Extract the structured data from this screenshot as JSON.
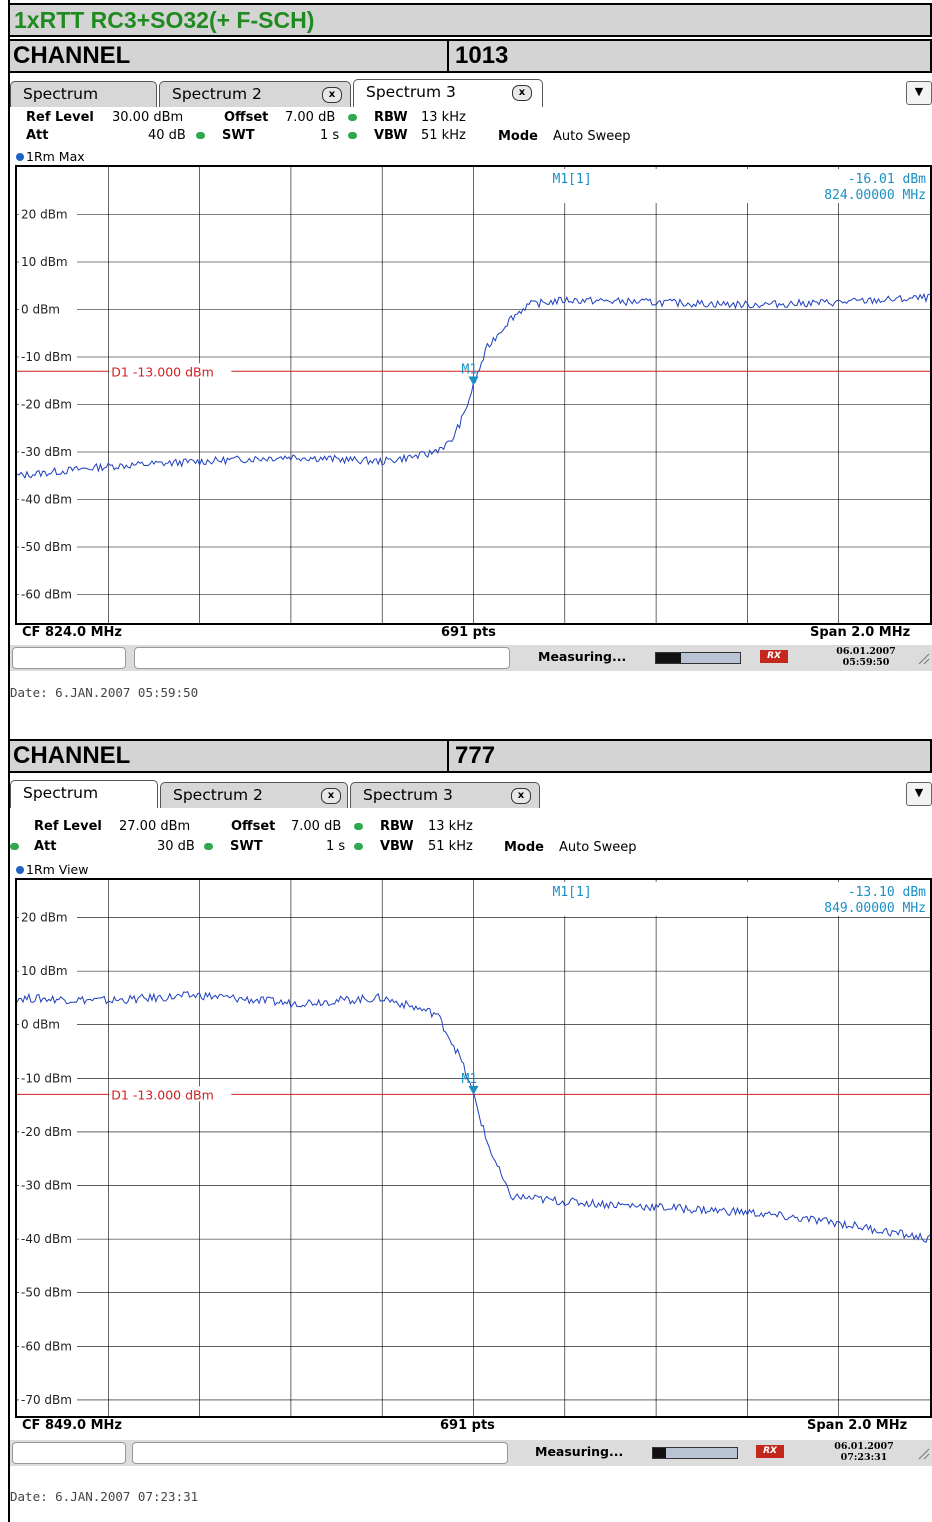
{
  "title": "1xRTT RC3+SO32(+ F-SCH)",
  "colors": {
    "title_text": "#1f8a1f",
    "trace": "#1e3fc0",
    "marker": "#1a8fc4",
    "display_line": "#d02020"
  },
  "panels": [
    {
      "channel_label": "CHANNEL",
      "channel_value": "1013",
      "tabs": [
        {
          "label": "Spectrum",
          "active": false,
          "close_icon": "x-icon"
        },
        {
          "label": "Spectrum 2",
          "active": false,
          "close_icon": "x-icon"
        },
        {
          "label": "Spectrum 3",
          "active": true,
          "close_icon": "x-icon"
        }
      ],
      "params": {
        "ref_level_label": "Ref Level",
        "ref_level_value": "30.00 dBm",
        "offset_label": "Offset",
        "offset_value": "7.00 dB",
        "rbw_label": "RBW",
        "rbw_value": "13 kHz",
        "att_label": "Att",
        "att_value": "40 dB",
        "swt_label": "SWT",
        "swt_value": "1 s",
        "vbw_label": "VBW",
        "vbw_value": "51 kHz",
        "mode_label": "Mode",
        "mode_value": "Auto Sweep"
      },
      "trace_label": "1Rm Max",
      "marker": {
        "name": "M1[1]",
        "level": "-16.01 dBm",
        "freq": "824.00000 MHz",
        "tag": "M1"
      },
      "display_line": "D1 -13.000 dBm",
      "y_axis_labels": [
        "20 dBm",
        "10 dBm",
        "0 dBm",
        "-10 dBm",
        "-20 dBm",
        "-30 dBm",
        "-40 dBm",
        "-50 dBm",
        "-60 dBm"
      ],
      "footer": {
        "cf": "CF 824.0 MHz",
        "pts": "691 pts",
        "span": "Span 2.0 MHz"
      },
      "status": {
        "measuring": "Measuring...",
        "progress": 0.3,
        "date": "06.01.2007",
        "time": "05:59:50"
      },
      "date_line": "Date: 6.JAN.2007  05:59:50",
      "chart_data": {
        "type": "line",
        "y_unit": "dBm",
        "ylim": [
          -66,
          30
        ],
        "xlim": [
          823.0,
          825.0
        ],
        "display_line_dbm": -13.0,
        "marker": {
          "x": 824.0,
          "y": -16.01
        },
        "series": [
          {
            "x": [
              823.0,
              823.2,
              823.4,
              823.6,
              823.8,
              823.9,
              823.95,
              823.98,
              824.0,
              824.03,
              824.08,
              824.12,
              824.2,
              824.4,
              824.6,
              824.8,
              825.0
            ],
            "y": [
              -35,
              -33,
              -32,
              -31,
              -32,
              -30.5,
              -28,
              -22,
              -16,
              -8,
              -2,
              1,
              2,
              1.5,
              1,
              1.5,
              2.5
            ]
          }
        ]
      }
    },
    {
      "channel_label": "CHANNEL",
      "channel_value": "777",
      "tabs": [
        {
          "label": "Spectrum",
          "active": true,
          "close_icon": ""
        },
        {
          "label": "Spectrum 2",
          "active": false,
          "close_icon": "x-icon"
        },
        {
          "label": "Spectrum 3",
          "active": false,
          "close_icon": "x-icon"
        }
      ],
      "params": {
        "ref_level_label": "Ref Level",
        "ref_level_value": "27.00 dBm",
        "offset_label": "Offset",
        "offset_value": "7.00 dB",
        "rbw_label": "RBW",
        "rbw_value": "13 kHz",
        "att_label": "Att",
        "att_value": "30 dB",
        "swt_label": "SWT",
        "swt_value": "1 s",
        "vbw_label": "VBW",
        "vbw_value": "51 kHz",
        "mode_label": "Mode",
        "mode_value": "Auto Sweep"
      },
      "trace_label": "1Rm View",
      "marker": {
        "name": "M1[1]",
        "level": "-13.10 dBm",
        "freq": "849.00000 MHz",
        "tag": "M1"
      },
      "display_line": "D1 -13.000 dBm",
      "y_axis_labels": [
        "20 dBm",
        "10 dBm",
        "0 dBm",
        "-10 dBm",
        "-20 dBm",
        "-30 dBm",
        "-40 dBm",
        "-50 dBm",
        "-60 dBm",
        "-70 dBm"
      ],
      "footer": {
        "cf": "CF 849.0 MHz",
        "pts": "691 pts",
        "span": "Span 2.0 MHz"
      },
      "status": {
        "measuring": "Measuring...",
        "progress": 0.15,
        "date": "06.01.2007",
        "time": "07:23:31"
      },
      "date_line": "Date: 6.JAN.2007  07:23:31",
      "chart_data": {
        "type": "line",
        "y_unit": "dBm",
        "ylim": [
          -73,
          27
        ],
        "xlim": [
          848.0,
          850.0
        ],
        "display_line_dbm": -13.0,
        "marker": {
          "x": 849.0,
          "y": -13.1
        },
        "series": [
          {
            "x": [
              848.0,
              848.2,
              848.4,
              848.6,
              848.8,
              848.92,
              848.97,
              849.0,
              849.03,
              849.08,
              849.2,
              849.4,
              849.6,
              849.8,
              850.0
            ],
            "y": [
              5,
              4.5,
              5.5,
              4,
              5,
              2,
              -6,
              -13,
              -22,
              -32,
              -33,
              -34,
              -35,
              -37,
              -40
            ]
          }
        ]
      }
    }
  ]
}
